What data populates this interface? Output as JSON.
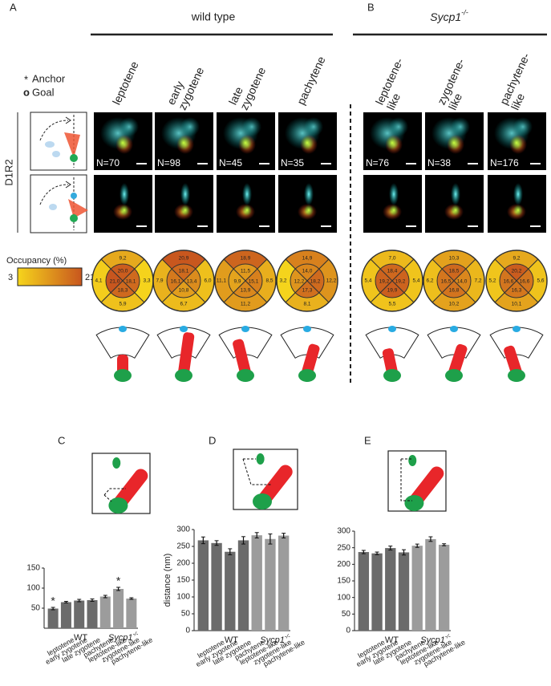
{
  "panel_labels": [
    "A",
    "B",
    "C",
    "D",
    "E"
  ],
  "genotypes": {
    "wild_type": "wild type",
    "mutant": {
      "gene": "Sycp1",
      "sup": "-/-"
    }
  },
  "legend": {
    "anchor_symbol": "*",
    "anchor": "Anchor",
    "goal_symbol": "o",
    "goal": "Goal"
  },
  "row_label": "D1R2",
  "occupancy_scale": {
    "title": "Occupancy (%)",
    "min": 3,
    "max": 21
  },
  "columns": [
    {
      "label": [
        "leptotene"
      ],
      "n": "N=70",
      "outer": [
        "9,2",
        "4,1",
        "3,3",
        "5,9"
      ],
      "inner": [
        "20,0",
        "21,0",
        "18,1",
        "18,3"
      ]
    },
    {
      "label": [
        "early",
        "zygotene"
      ],
      "n": "N=98",
      "outer": [
        "20,9",
        "7,9",
        "6,0",
        "6,7"
      ],
      "inner": [
        "18,1",
        "16,1",
        "13,4",
        "10,8"
      ]
    },
    {
      "label": [
        "late",
        "zygotene"
      ],
      "n": "N=45",
      "outer": [
        "18,9",
        "11,1",
        "8,5",
        "11,2"
      ],
      "inner": [
        "11,5",
        "9,9",
        "15,1",
        "13,9"
      ]
    },
    {
      "label": [
        "pachytene"
      ],
      "n": "N=35",
      "outer": [
        "14,9",
        "3,2",
        "12,2",
        "8,1"
      ],
      "inner": [
        "14,0",
        "12,2",
        "18,2",
        "17,3"
      ]
    },
    {
      "label": [
        "leptotene-",
        "like"
      ],
      "n": "N=76",
      "outer": [
        "7,0",
        "5,4",
        "5,4",
        "5,5"
      ],
      "inner": [
        "18,4",
        "19,2",
        "19,2",
        "19,9"
      ]
    },
    {
      "label": [
        "zygotene-",
        "like"
      ],
      "n": "N=38",
      "outer": [
        "10,3",
        "6,2",
        "7,2",
        "10,2"
      ],
      "inner": [
        "18,5",
        "16,5",
        "14,0",
        "16,8"
      ]
    },
    {
      "label": [
        "pachytene-",
        "like"
      ],
      "n": "N=176",
      "outer": [
        "9,2",
        "5,2",
        "5,6",
        "10,1"
      ],
      "inner": [
        "20,2",
        "16,6",
        "16,6",
        "16,3"
      ]
    }
  ],
  "chart_data": [
    {
      "type": "bar",
      "categories": [
        "leptotene",
        "early zygotene",
        "late zygotene",
        "pachytene",
        "leptotene-like",
        "zygotene-like",
        "pachytene-like"
      ],
      "values": [
        49,
        65,
        69,
        70,
        79,
        98,
        74
      ],
      "errors": [
        3,
        2,
        3,
        3,
        3,
        4,
        2
      ],
      "value_annotations": [
        "*",
        null,
        null,
        null,
        null,
        "*",
        null
      ],
      "colors": [
        "#6b6b6b",
        "#6b6b6b",
        "#6b6b6b",
        "#6b6b6b",
        "#9c9c9c",
        "#9c9c9c",
        "#9c9c9c"
      ],
      "groups": [
        {
          "name": "WT",
          "size": 4
        },
        {
          "name": "Sycp1",
          "sup": "-/-",
          "size": 3
        }
      ],
      "ylim": [
        0,
        150
      ],
      "yticks": [
        50,
        100,
        150
      ]
    },
    {
      "type": "bar",
      "y_label": "distance (nm)",
      "categories": [
        "leptotene",
        "early zygotene",
        "late zygotene",
        "pachytene",
        "leptotene-like",
        "zygotene-like",
        "pachytene-like"
      ],
      "values": [
        268,
        260,
        234,
        268,
        283,
        272,
        282
      ],
      "errors": [
        10,
        7,
        9,
        11,
        8,
        15,
        7
      ],
      "colors": [
        "#6b6b6b",
        "#6b6b6b",
        "#6b6b6b",
        "#6b6b6b",
        "#9c9c9c",
        "#9c9c9c",
        "#9c9c9c"
      ],
      "groups": [
        {
          "name": "WT",
          "size": 4
        },
        {
          "name": "Sycp1",
          "sup": "-/-",
          "size": 3
        }
      ],
      "ylim": [
        0,
        300
      ],
      "yticks": [
        0,
        50,
        100,
        150,
        200,
        250,
        300
      ]
    },
    {
      "type": "bar",
      "categories": [
        "leptotene",
        "early zygotene",
        "late zygotene",
        "pachytene",
        "leptotene-like",
        "zygotene-like",
        "pachytene-like"
      ],
      "values": [
        237,
        233,
        249,
        236,
        256,
        276,
        259
      ],
      "errors": [
        5,
        4,
        6,
        8,
        5,
        7,
        3
      ],
      "colors": [
        "#6b6b6b",
        "#6b6b6b",
        "#6b6b6b",
        "#6b6b6b",
        "#9c9c9c",
        "#9c9c9c",
        "#9c9c9c"
      ],
      "groups": [
        {
          "name": "WT",
          "size": 4
        },
        {
          "name": "Sycp1",
          "sup": "-/-",
          "size": 3
        }
      ],
      "ylim": [
        0,
        300
      ],
      "yticks": [
        0,
        50,
        100,
        150,
        200,
        250,
        300
      ]
    }
  ]
}
